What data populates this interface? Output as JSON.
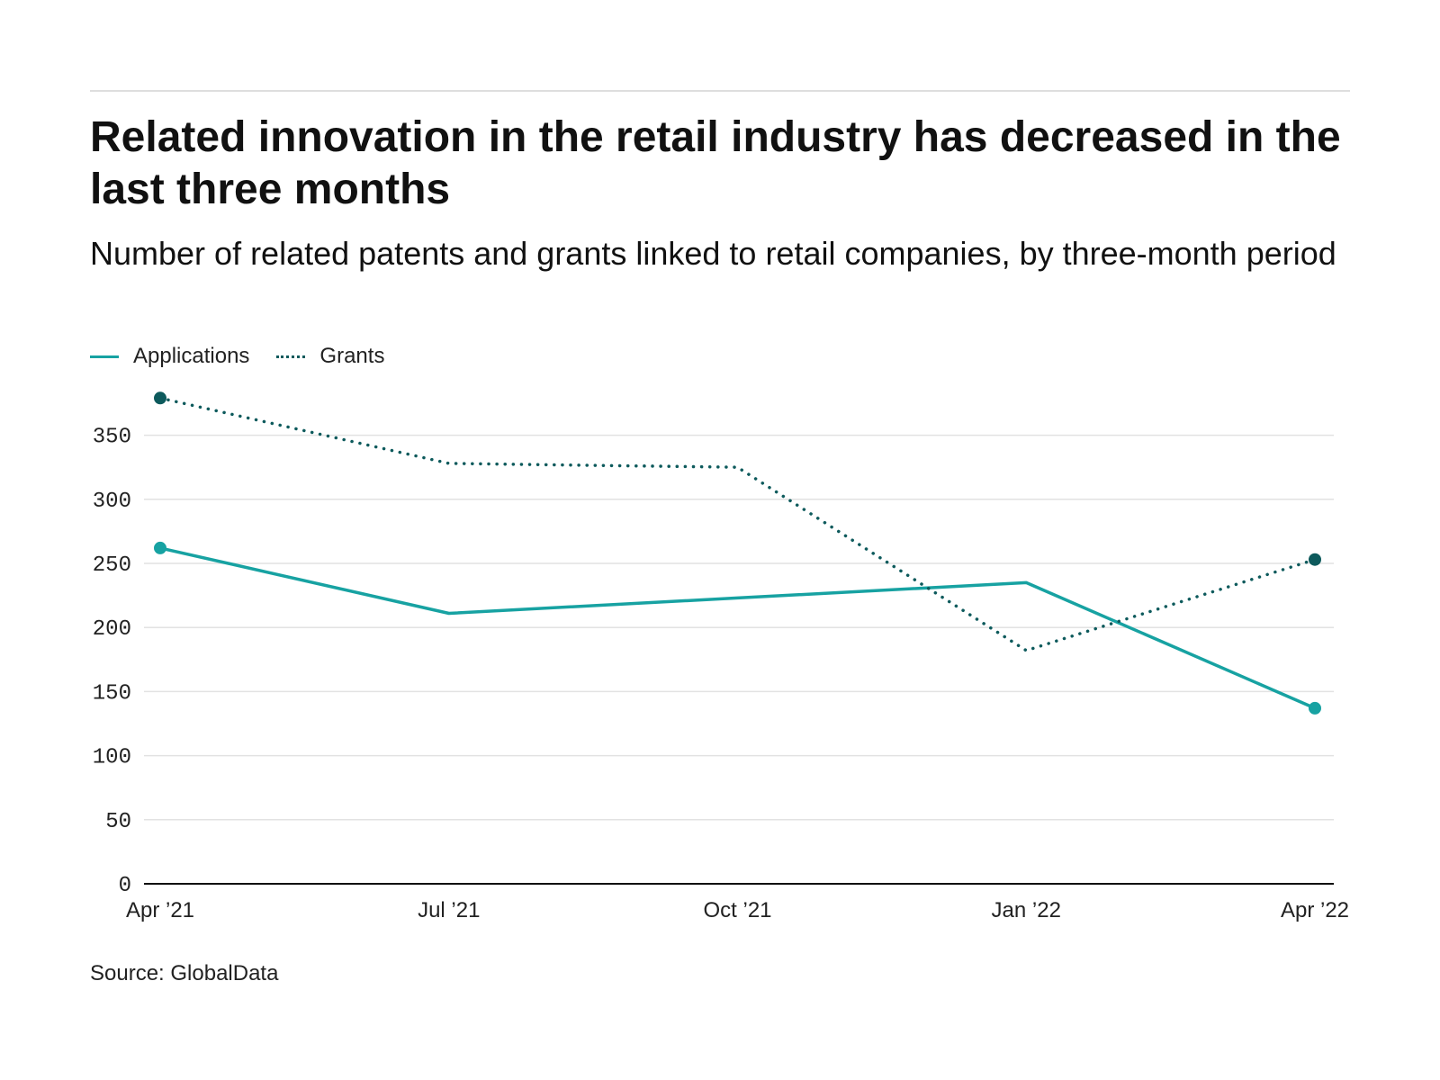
{
  "chart_data": {
    "type": "line",
    "title": "Related innovation in the retail industry has decreased in the last three months",
    "subtitle": "Number of related patents and grants linked to retail companies, by three-month period",
    "categories": [
      "Apr ’21",
      "Jul ’21",
      "Oct ’21",
      "Jan ’22",
      "Apr ’22"
    ],
    "series": [
      {
        "name": "Applications",
        "values": [
          262,
          211,
          223,
          235,
          137
        ],
        "color": "#17a2a2",
        "style": "solid"
      },
      {
        "name": "Grants",
        "values": [
          379,
          328,
          325,
          182,
          253
        ],
        "color": "#0d5a5c",
        "style": "dotted"
      }
    ],
    "yticks": [
      0,
      50,
      100,
      150,
      200,
      250,
      300,
      350
    ],
    "ylim": [
      0,
      380
    ],
    "grid": true,
    "legend": "top-left",
    "source": "Source: GlobalData"
  }
}
